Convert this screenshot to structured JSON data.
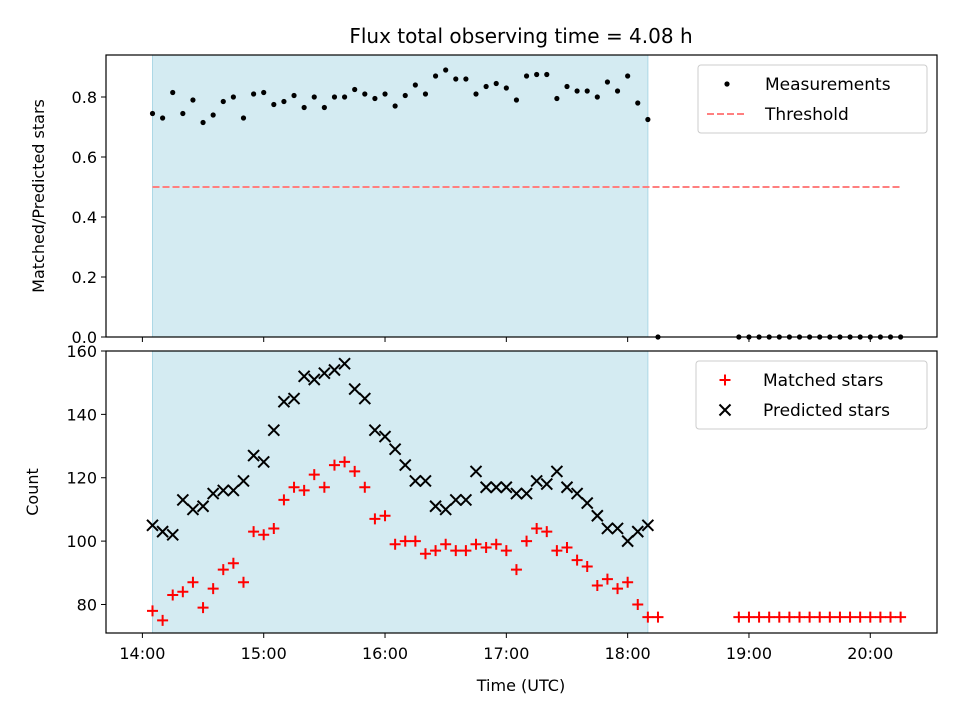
{
  "chart_data": {
    "title": "Flux total observing time = 4.08 h",
    "shaded_region": {
      "x_start": "14:05",
      "x_end": "18:10",
      "color": "#add8e6"
    },
    "x_axis": {
      "label": "Time (UTC)",
      "range": [
        "13:42",
        "20:33"
      ],
      "ticks": [
        "14:00",
        "15:00",
        "16:00",
        "17:00",
        "18:00",
        "19:00",
        "20:00"
      ]
    },
    "panels": [
      {
        "type": "scatter",
        "ylabel": "Matched/Predicted stars",
        "ylim": [
          0,
          0.94
        ],
        "yticks": [
          "0.0",
          "0.2",
          "0.4",
          "0.6",
          "0.8"
        ],
        "legend": {
          "position": "upper right"
        },
        "series": [
          {
            "name": "Measurements",
            "marker": "dot",
            "color": "#000000",
            "points": [
              [
                "14:05",
                0.745
              ],
              [
                "14:10",
                0.73
              ],
              [
                "14:15",
                0.815
              ],
              [
                "14:20",
                0.745
              ],
              [
                "14:25",
                0.79
              ],
              [
                "14:30",
                0.715
              ],
              [
                "14:35",
                0.74
              ],
              [
                "14:40",
                0.785
              ],
              [
                "14:45",
                0.8
              ],
              [
                "14:50",
                0.73
              ],
              [
                "14:55",
                0.81
              ],
              [
                "15:00",
                0.815
              ],
              [
                "15:05",
                0.775
              ],
              [
                "15:10",
                0.785
              ],
              [
                "15:15",
                0.805
              ],
              [
                "15:20",
                0.765
              ],
              [
                "15:25",
                0.8
              ],
              [
                "15:30",
                0.765
              ],
              [
                "15:35",
                0.8
              ],
              [
                "15:40",
                0.8
              ],
              [
                "15:45",
                0.825
              ],
              [
                "15:50",
                0.81
              ],
              [
                "15:55",
                0.795
              ],
              [
                "16:00",
                0.81
              ],
              [
                "16:05",
                0.77
              ],
              [
                "16:10",
                0.805
              ],
              [
                "16:15",
                0.84
              ],
              [
                "16:20",
                0.81
              ],
              [
                "16:25",
                0.87
              ],
              [
                "16:30",
                0.89
              ],
              [
                "16:35",
                0.86
              ],
              [
                "16:40",
                0.86
              ],
              [
                "16:45",
                0.81
              ],
              [
                "16:50",
                0.835
              ],
              [
                "16:55",
                0.845
              ],
              [
                "17:00",
                0.83
              ],
              [
                "17:05",
                0.79
              ],
              [
                "17:10",
                0.87
              ],
              [
                "17:15",
                0.875
              ],
              [
                "17:20",
                0.875
              ],
              [
                "17:25",
                0.795
              ],
              [
                "17:30",
                0.835
              ],
              [
                "17:35",
                0.82
              ],
              [
                "17:40",
                0.82
              ],
              [
                "17:45",
                0.8
              ],
              [
                "17:50",
                0.85
              ],
              [
                "17:55",
                0.82
              ],
              [
                "18:00",
                0.87
              ],
              [
                "18:05",
                0.78
              ],
              [
                "18:10",
                0.725
              ],
              [
                "18:15",
                0.0
              ],
              [
                "18:55",
                0.0
              ],
              [
                "19:00",
                0.0
              ],
              [
                "19:05",
                0.0
              ],
              [
                "19:10",
                0.0
              ],
              [
                "19:15",
                0.0
              ],
              [
                "19:20",
                0.0
              ],
              [
                "19:25",
                0.0
              ],
              [
                "19:30",
                0.0
              ],
              [
                "19:35",
                0.0
              ],
              [
                "19:40",
                0.0
              ],
              [
                "19:45",
                0.0
              ],
              [
                "19:50",
                0.0
              ],
              [
                "19:55",
                0.0
              ],
              [
                "20:00",
                0.0
              ],
              [
                "20:05",
                0.0
              ],
              [
                "20:10",
                0.0
              ],
              [
                "20:15",
                0.0
              ]
            ]
          },
          {
            "name": "Threshold",
            "marker": "dashed-line",
            "color": "#ff7f7f",
            "points": [
              [
                "14:05",
                0.5
              ],
              [
                "20:15",
                0.5
              ]
            ]
          }
        ]
      },
      {
        "type": "scatter",
        "ylabel": "Count",
        "ylim": [
          71,
          160
        ],
        "yticks": [
          "80",
          "100",
          "120",
          "140",
          "160"
        ],
        "legend": {
          "position": "upper right"
        },
        "series": [
          {
            "name": "Matched stars",
            "marker": "plus",
            "color": "#ff0000",
            "points": [
              [
                "14:05",
                78
              ],
              [
                "14:10",
                75
              ],
              [
                "14:15",
                83
              ],
              [
                "14:20",
                84
              ],
              [
                "14:25",
                87
              ],
              [
                "14:30",
                79
              ],
              [
                "14:35",
                85
              ],
              [
                "14:40",
                91
              ],
              [
                "14:45",
                93
              ],
              [
                "14:50",
                87
              ],
              [
                "14:55",
                103
              ],
              [
                "15:00",
                102
              ],
              [
                "15:05",
                104
              ],
              [
                "15:10",
                113
              ],
              [
                "15:15",
                117
              ],
              [
                "15:20",
                116
              ],
              [
                "15:25",
                121
              ],
              [
                "15:30",
                117
              ],
              [
                "15:35",
                124
              ],
              [
                "15:40",
                125
              ],
              [
                "15:45",
                122
              ],
              [
                "15:50",
                117
              ],
              [
                "15:55",
                107
              ],
              [
                "16:00",
                108
              ],
              [
                "16:05",
                99
              ],
              [
                "16:10",
                100
              ],
              [
                "16:15",
                100
              ],
              [
                "16:20",
                96
              ],
              [
                "16:25",
                97
              ],
              [
                "16:30",
                99
              ],
              [
                "16:35",
                97
              ],
              [
                "16:40",
                97
              ],
              [
                "16:45",
                99
              ],
              [
                "16:50",
                98
              ],
              [
                "16:55",
                99
              ],
              [
                "17:00",
                97
              ],
              [
                "17:05",
                91
              ],
              [
                "17:10",
                100
              ],
              [
                "17:15",
                104
              ],
              [
                "17:20",
                103
              ],
              [
                "17:25",
                97
              ],
              [
                "17:30",
                98
              ],
              [
                "17:35",
                94
              ],
              [
                "17:40",
                92
              ],
              [
                "17:45",
                86
              ],
              [
                "17:50",
                88
              ],
              [
                "17:55",
                85
              ],
              [
                "18:00",
                87
              ],
              [
                "18:05",
                80
              ],
              [
                "18:10",
                76
              ],
              [
                "18:15",
                76
              ],
              [
                "18:55",
                76
              ],
              [
                "19:00",
                76
              ],
              [
                "19:05",
                76
              ],
              [
                "19:10",
                76
              ],
              [
                "19:15",
                76
              ],
              [
                "19:20",
                76
              ],
              [
                "19:25",
                76
              ],
              [
                "19:30",
                76
              ],
              [
                "19:35",
                76
              ],
              [
                "19:40",
                76
              ],
              [
                "19:45",
                76
              ],
              [
                "19:50",
                76
              ],
              [
                "19:55",
                76
              ],
              [
                "20:00",
                76
              ],
              [
                "20:05",
                76
              ],
              [
                "20:10",
                76
              ],
              [
                "20:15",
                76
              ]
            ]
          },
          {
            "name": "Predicted stars",
            "marker": "x",
            "color": "#000000",
            "points": [
              [
                "14:05",
                105
              ],
              [
                "14:10",
                103
              ],
              [
                "14:15",
                102
              ],
              [
                "14:20",
                113
              ],
              [
                "14:25",
                110
              ],
              [
                "14:30",
                111
              ],
              [
                "14:35",
                115
              ],
              [
                "14:40",
                116
              ],
              [
                "14:45",
                116
              ],
              [
                "14:50",
                119
              ],
              [
                "14:55",
                127
              ],
              [
                "15:00",
                125
              ],
              [
                "15:05",
                135
              ],
              [
                "15:10",
                144
              ],
              [
                "15:15",
                145
              ],
              [
                "15:20",
                152
              ],
              [
                "15:25",
                151
              ],
              [
                "15:30",
                153
              ],
              [
                "15:35",
                154
              ],
              [
                "15:40",
                156
              ],
              [
                "15:45",
                148
              ],
              [
                "15:50",
                145
              ],
              [
                "15:55",
                135
              ],
              [
                "16:00",
                133
              ],
              [
                "16:05",
                129
              ],
              [
                "16:10",
                124
              ],
              [
                "16:15",
                119
              ],
              [
                "16:20",
                119
              ],
              [
                "16:25",
                111
              ],
              [
                "16:30",
                110
              ],
              [
                "16:35",
                113
              ],
              [
                "16:40",
                113
              ],
              [
                "16:45",
                122
              ],
              [
                "16:50",
                117
              ],
              [
                "16:55",
                117
              ],
              [
                "17:00",
                117
              ],
              [
                "17:05",
                115
              ],
              [
                "17:10",
                115
              ],
              [
                "17:15",
                119
              ],
              [
                "17:20",
                118
              ],
              [
                "17:25",
                122
              ],
              [
                "17:30",
                117
              ],
              [
                "17:35",
                115
              ],
              [
                "17:40",
                112
              ],
              [
                "17:45",
                108
              ],
              [
                "17:50",
                104
              ],
              [
                "17:55",
                104
              ],
              [
                "18:00",
                100
              ],
              [
                "18:05",
                103
              ],
              [
                "18:10",
                105
              ]
            ]
          }
        ]
      }
    ]
  }
}
